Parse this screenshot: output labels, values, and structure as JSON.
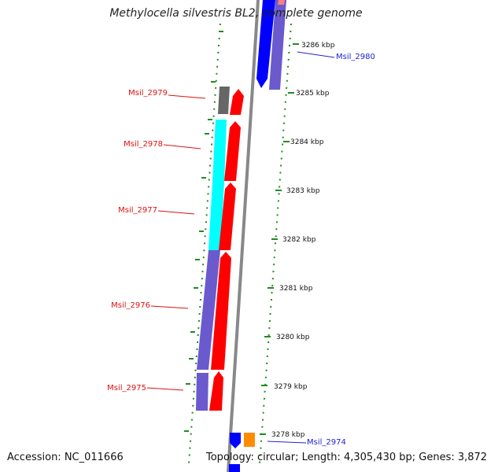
{
  "title": "Methylocella silvestris BL2, complete genome",
  "accession": "Accession: NC_011666",
  "summary": "Topology: circular; Length: 4,305,430 bp; Genes: 3,872",
  "ticks": [
    "3286 kbp",
    "3285 kbp",
    "3284 kbp",
    "3283 kbp",
    "3282 kbp",
    "3281 kbp",
    "3280 kbp",
    "3279 kbp",
    "3278 kbp"
  ],
  "genes": [
    {
      "label": "Msil_2980",
      "color": "#2222cc"
    },
    {
      "label": "Msil_2979",
      "color": "#dd1111"
    },
    {
      "label": "Msil_2978",
      "color": "#dd1111"
    },
    {
      "label": "Msil_2977",
      "color": "#dd1111"
    },
    {
      "label": "Msil_2976",
      "color": "#dd1111"
    },
    {
      "label": "Msil_2975",
      "color": "#dd1111"
    },
    {
      "label": "Msil_2974",
      "color": "#2222cc"
    }
  ],
  "colors": {
    "cds": "#ff0000",
    "reverse_cds": "#0000ff",
    "cog_cyan": "#00ffff",
    "cog_slate": "#6a5acd",
    "cog_gray": "#666666",
    "cog_orange": "#ff8c00",
    "backbone": "#888888",
    "gc_dots": "#228b22"
  }
}
